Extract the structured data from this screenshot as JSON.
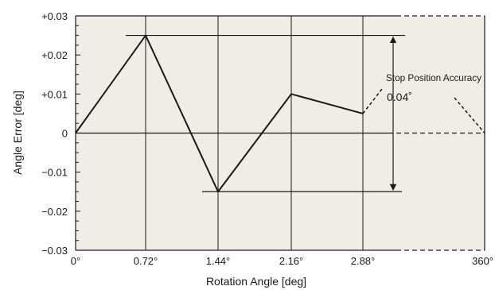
{
  "chart_data": {
    "type": "line",
    "xlabel": "Rotation Angle [deg]",
    "ylabel": "Angle Error [deg]",
    "x_ticks": [
      "0°",
      "0.72°",
      "1.44°",
      "2.16°",
      "2.88°",
      "360°"
    ],
    "y_ticks": [
      "+0.03",
      "+0.02",
      "+0.01",
      "0",
      "−0.01",
      "−0.02",
      "−0.03"
    ],
    "ylim": [
      -0.03,
      0.03
    ],
    "grid": "vertical lines at step positions",
    "series": [
      {
        "x": [
          "0°",
          "0.72°",
          "1.44°",
          "2.16°",
          "2.88°"
        ],
        "y": [
          0,
          0.025,
          -0.015,
          0.01,
          0.005
        ]
      }
    ],
    "continuation": {
      "from": [
        "2.88°",
        0.005
      ],
      "to": [
        "360°",
        0
      ],
      "style": "dashed"
    },
    "reference_lines": {
      "max": 0.025,
      "min": -0.015,
      "zero": 0
    },
    "annotation": {
      "label": "Stop Position Accuracy",
      "value": "0.04˚"
    },
    "colors": {
      "background": "#efede6",
      "line": "#1a1a1a"
    }
  }
}
